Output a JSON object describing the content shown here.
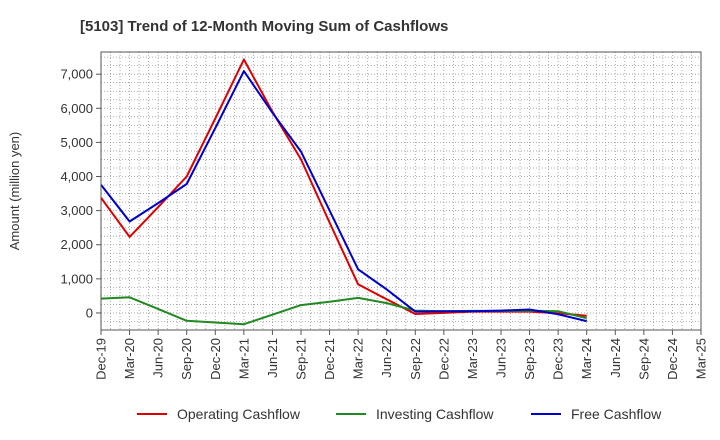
{
  "chart_data": {
    "type": "line",
    "title": "[5103]  Trend of 12-Month Moving Sum of Cashflows",
    "xlabel": "",
    "ylabel": "Amount (million yen)",
    "categories": [
      "Dec-19",
      "Mar-20",
      "Jun-20",
      "Sep-20",
      "Dec-20",
      "Mar-21",
      "Jun-21",
      "Sep-21",
      "Dec-21",
      "Mar-22",
      "Jun-22",
      "Sep-22",
      "Dec-22",
      "Mar-23",
      "Jun-23",
      "Sep-23",
      "Dec-23",
      "Mar-24",
      "Jun-24",
      "Sep-24",
      "Dec-24",
      "Mar-25"
    ],
    "y_ticks": [
      0,
      1000,
      2000,
      3000,
      4000,
      5000,
      6000,
      7000
    ],
    "y_tick_labels": [
      "0",
      "1,000",
      "2,000",
      "3,000",
      "4,000",
      "5,000",
      "6,000",
      "7,000"
    ],
    "ylim": [
      -500,
      7650
    ],
    "grid": true,
    "legend_position": "bottom",
    "series": [
      {
        "name": "Operating Cashflow",
        "color": "#dd0000",
        "values": [
          3380,
          2230,
          3100,
          4000,
          5700,
          7430,
          5900,
          4500,
          2650,
          840,
          400,
          -30,
          0,
          40,
          40,
          40,
          -10,
          -80,
          null,
          null,
          null,
          null
        ]
      },
      {
        "name": "Investing Cashflow",
        "color": "#228822",
        "values": [
          420,
          460,
          120,
          -230,
          -280,
          -330,
          -50,
          230,
          330,
          440,
          290,
          70,
          50,
          60,
          60,
          70,
          50,
          -150,
          null,
          null,
          null,
          null
        ]
      },
      {
        "name": "Free Cashflow",
        "color": "#0000cc",
        "values": [
          3760,
          2680,
          3220,
          3780,
          5420,
          7090,
          5870,
          4730,
          3000,
          1280,
          690,
          40,
          50,
          50,
          70,
          100,
          -40,
          -240,
          null,
          null,
          null,
          null
        ]
      }
    ]
  }
}
